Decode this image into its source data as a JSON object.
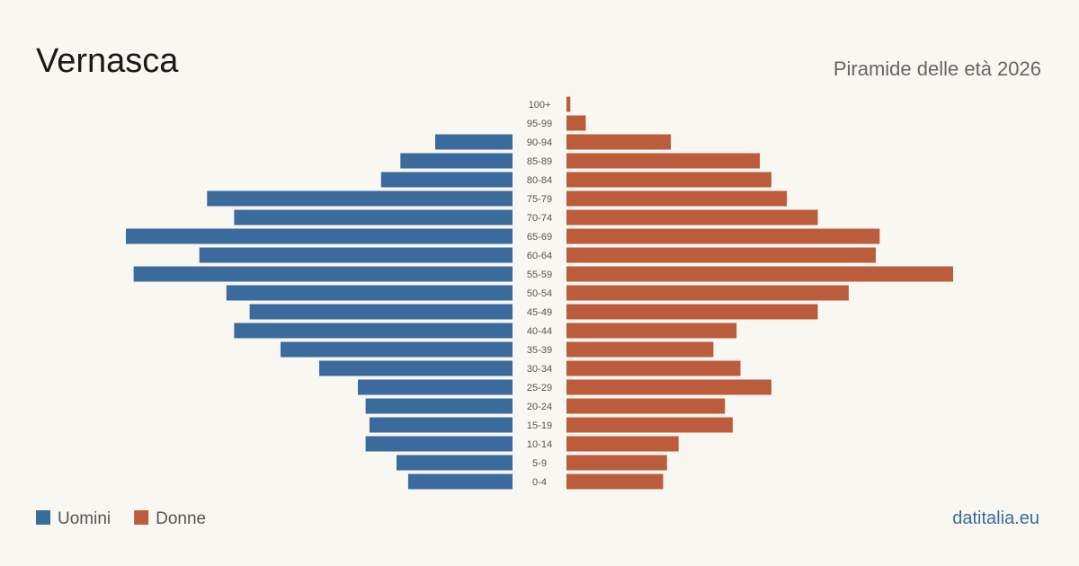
{
  "chart_data": {
    "type": "pyramid",
    "title": "Vernasca",
    "subtitle": "Piramide delle età 2026",
    "source": "datitalia.eu",
    "categories": [
      "100+",
      "95-99",
      "90-94",
      "85-89",
      "80-84",
      "75-79",
      "70-74",
      "65-69",
      "60-64",
      "55-59",
      "50-54",
      "45-49",
      "40-44",
      "35-39",
      "30-34",
      "25-29",
      "20-24",
      "15-19",
      "10-14",
      "5-9",
      "0-4"
    ],
    "series": [
      {
        "name": "Uomini",
        "color": "#3a6b9c",
        "values": [
          0,
          0,
          20,
          29,
          34,
          79,
          72,
          100,
          81,
          98,
          74,
          68,
          72,
          60,
          50,
          40,
          38,
          37,
          38,
          30,
          27
        ]
      },
      {
        "name": "Donne",
        "color": "#bb5c3c",
        "values": [
          1,
          5,
          27,
          50,
          53,
          57,
          65,
          81,
          80,
          100,
          73,
          65,
          44,
          38,
          45,
          53,
          41,
          43,
          29,
          26,
          25
        ]
      }
    ]
  }
}
